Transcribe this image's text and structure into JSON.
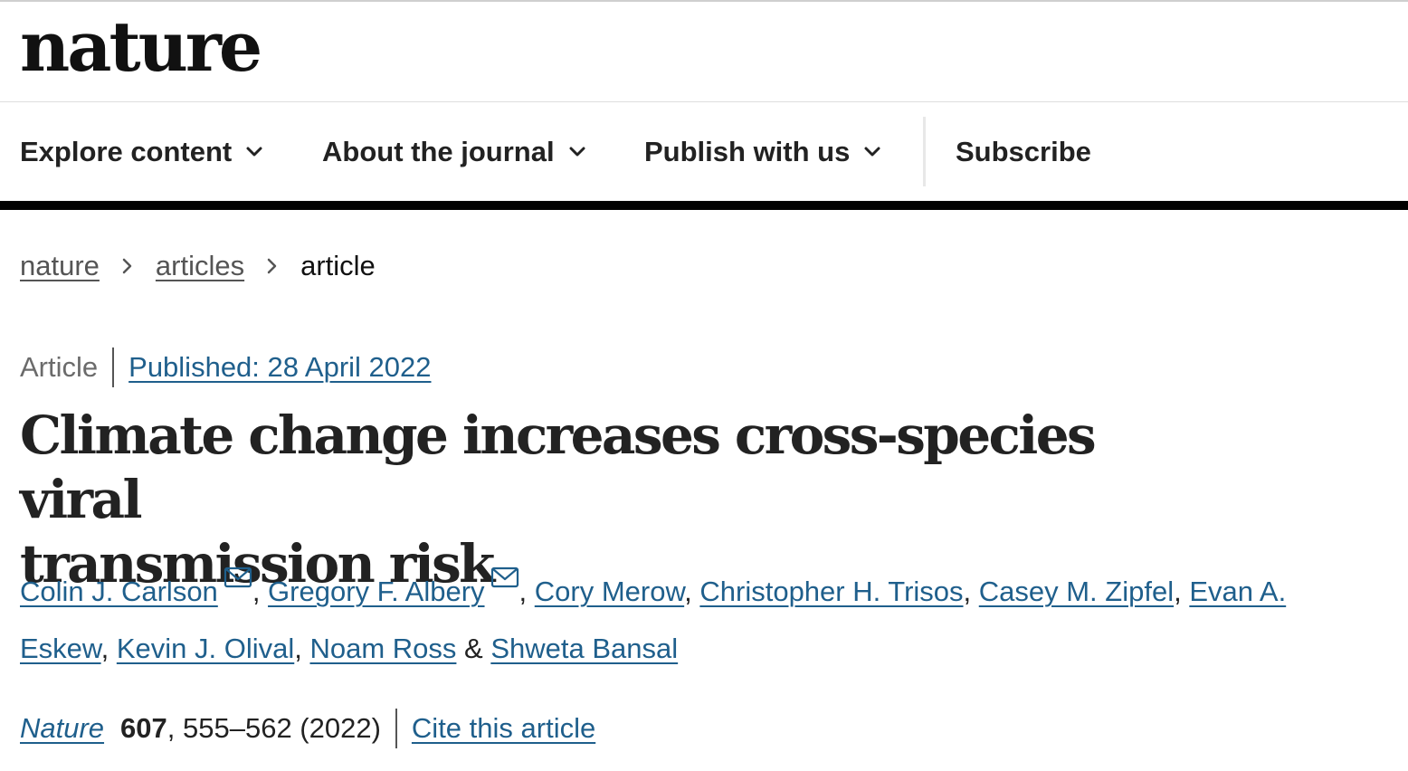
{
  "header": {
    "logo_text": "nature"
  },
  "nav": {
    "items": [
      {
        "label": "Explore content",
        "has_dropdown": true
      },
      {
        "label": "About the journal",
        "has_dropdown": true
      },
      {
        "label": "Publish with us",
        "has_dropdown": true
      },
      {
        "label": "Subscribe",
        "has_dropdown": false
      }
    ]
  },
  "breadcrumb": {
    "items": [
      "nature",
      "articles",
      "article"
    ]
  },
  "article": {
    "type": "Article",
    "published": "Published: 28 April 2022",
    "title_line1": "Climate change increases cross-species viral",
    "title_line2": "transmission risk",
    "authors": [
      {
        "name": "Colin J. Carlson",
        "email_icon": true
      },
      {
        "name": "Gregory F. Albery",
        "email_icon": true
      },
      {
        "name": "Cory Merow",
        "email_icon": false
      },
      {
        "name": "Christopher H. Trisos",
        "email_icon": false
      },
      {
        "name": "Casey M. Zipfel",
        "email_icon": false
      },
      {
        "name": "Evan A. Eskew",
        "email_icon": false
      },
      {
        "name": "Kevin J. Olival",
        "email_icon": false
      },
      {
        "name": "Noam Ross",
        "email_icon": false
      },
      {
        "name": "Shweta Bansal",
        "email_icon": false
      }
    ],
    "author_separator": ", ",
    "author_last_separator": " & ",
    "citation": {
      "journal": "Nature",
      "volume": "607",
      "pages_year": ", 555–562 (2022)",
      "cite_link": "Cite this article"
    }
  },
  "colors": {
    "link": "#1f5f8c",
    "text": "#222222",
    "nav_rule": "#000000"
  },
  "icons": {
    "dropdown": "chevron-down-icon",
    "breadcrumb_separator": "chevron-right-icon",
    "author_contact": "envelope-icon"
  }
}
